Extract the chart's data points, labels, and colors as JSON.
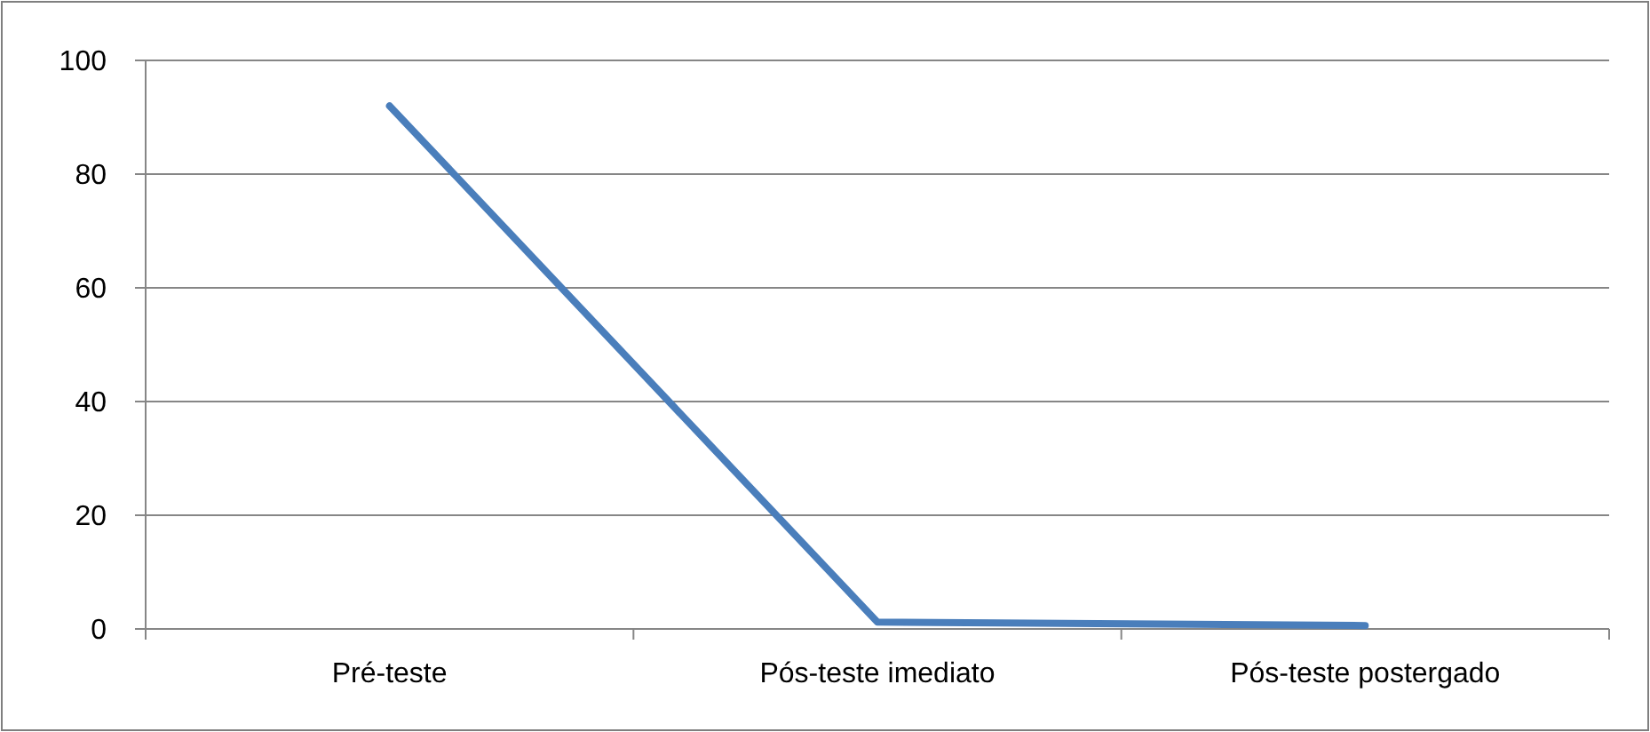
{
  "chart_data": {
    "type": "line",
    "categories": [
      "Pré-teste",
      "Pós-teste imediato",
      "Pós-teste postergado"
    ],
    "series": [
      {
        "color": "#4a7ebb",
        "values": [
          92,
          1.2,
          0.6
        ]
      }
    ],
    "ylim": [
      0,
      100
    ],
    "yticks": [
      0,
      20,
      40,
      60,
      80,
      100
    ],
    "grid": "y",
    "marker": "none",
    "line_style": "solid"
  }
}
